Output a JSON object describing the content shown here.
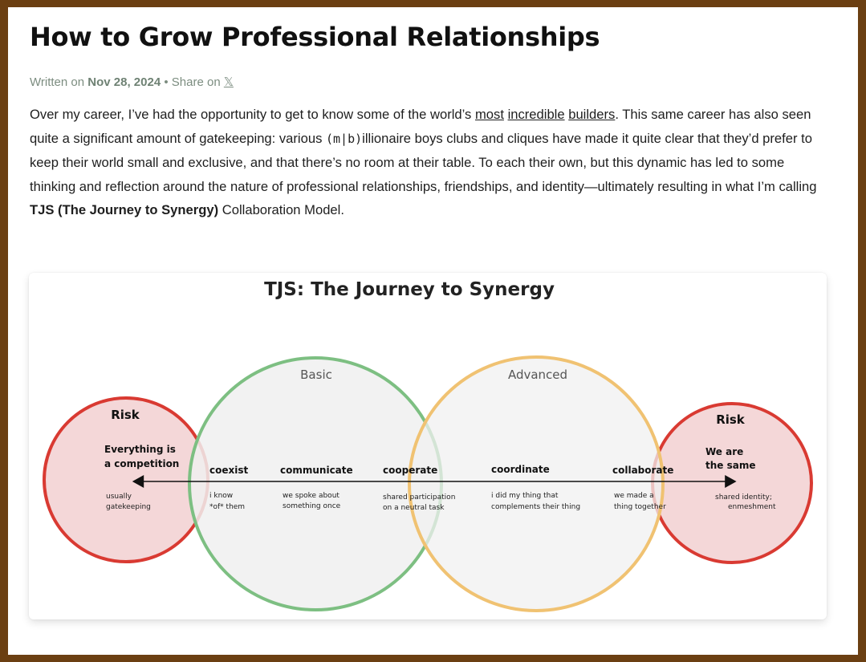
{
  "article": {
    "title": "How to Grow Professional Relationships",
    "written_on_label": "Written on",
    "date": "Nov 28, 2024",
    "separator": "•",
    "share_label": "Share on",
    "share_icon_glyph": "𝕏",
    "share_icon": "x-icon",
    "intro": {
      "p1": "Over my career, I’ve had the opportunity to get to know some of the world’s",
      "links": [
        "most",
        "incredible",
        "builders"
      ],
      "p2": ". This same career has also seen quite a significant amount of gatekeeping: various",
      "code": "(m|b)",
      "p3": "illionaire boys clubs and cliques have made it quite clear that they’d prefer to keep their world small and exclusive, and that there’s no room at their table. To each their own, but this dynamic has led to some thinking and reflection around the nature of professional relationships, friendships, and identity—ultimately resulting in what I’m calling",
      "bold": "TJS (The Journey to Synergy)",
      "p4": "Collaboration Model."
    }
  },
  "diagram": {
    "title": "TJS: The Journey to Synergy",
    "circle_labels": {
      "risk_left": "Risk",
      "basic": "Basic",
      "advanced": "Advanced",
      "risk_right": "Risk"
    },
    "left_heading": [
      "Everything is",
      "a competition"
    ],
    "left_note": [
      "usually",
      "gatekeeping"
    ],
    "right_heading": [
      "We are",
      "the same"
    ],
    "right_note": [
      "shared identity;",
      "enmeshment"
    ],
    "stages": [
      {
        "name": "coexist",
        "desc": [
          "i know",
          "*of* them"
        ]
      },
      {
        "name": "communicate",
        "desc": [
          "we spoke about",
          "something once"
        ]
      },
      {
        "name": "cooperate",
        "desc": [
          "shared participation",
          "on a neutral task"
        ]
      },
      {
        "name": "coordinate",
        "desc": [
          "i did my thing that",
          "complements their thing"
        ]
      },
      {
        "name": "collaborate",
        "desc": [
          "we made a",
          "thing together"
        ]
      }
    ],
    "colors": {
      "risk": "#d93a32",
      "risk_fill": "#f3d3d4",
      "basic": "#7dbf82",
      "advanced": "#f0c272",
      "circle_fill": "#f2f2f2",
      "arrow": "#111111"
    }
  }
}
